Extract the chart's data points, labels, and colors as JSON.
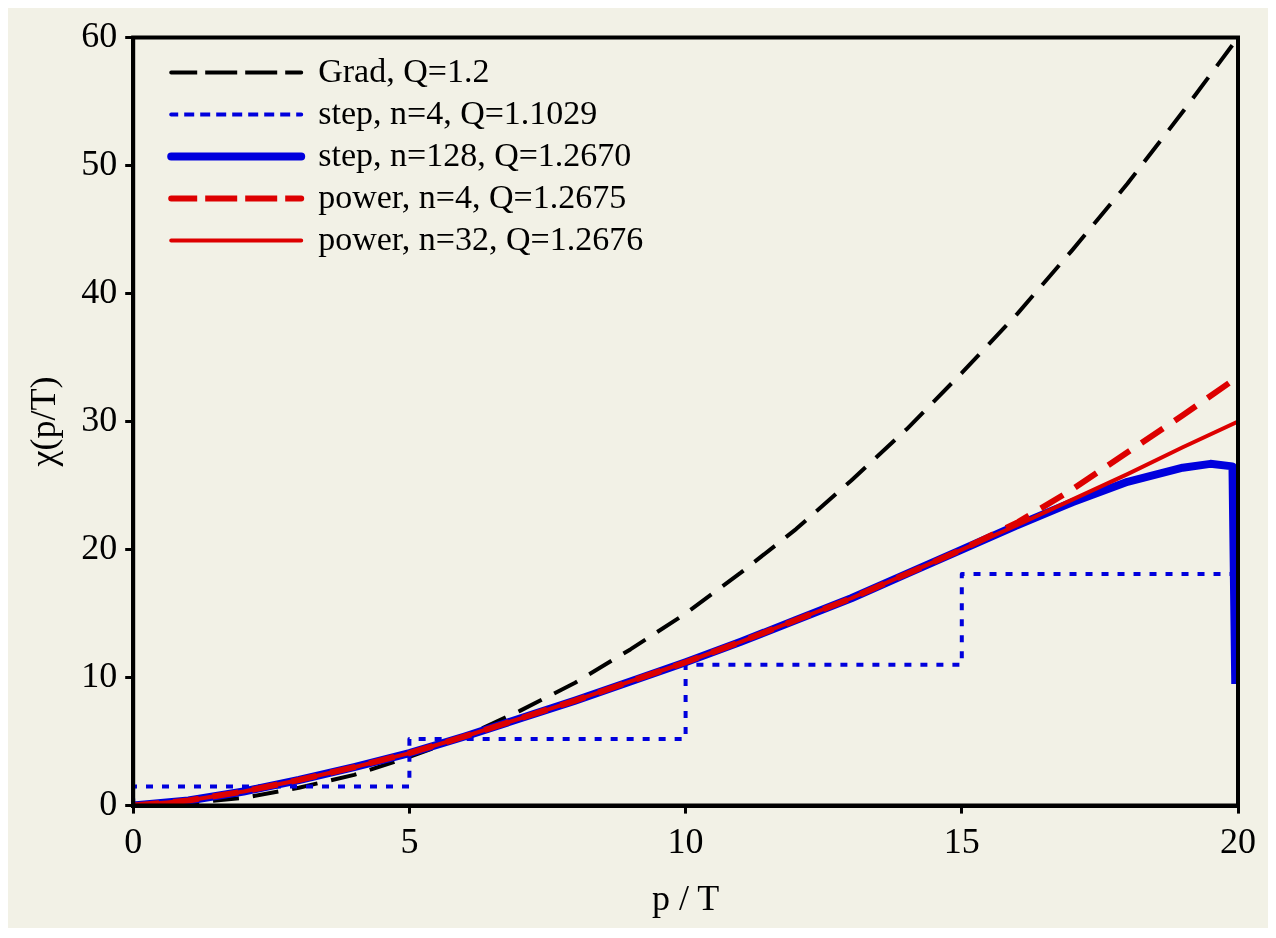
{
  "chart_data": {
    "type": "line",
    "xlabel": "p / T",
    "ylabel": "χ(p/T)",
    "xlim": [
      0,
      20
    ],
    "ylim": [
      0,
      60
    ],
    "xticks": [
      0,
      5,
      10,
      15,
      20
    ],
    "yticks": [
      0,
      10,
      20,
      30,
      40,
      50,
      60
    ],
    "grid": false,
    "legend": "top left",
    "marker": "none",
    "series": [
      {
        "name": "Grad, Q=1.2",
        "color": "#000000",
        "line_style": "dashed",
        "x": [
          0,
          1,
          2,
          3,
          4,
          5,
          6,
          7,
          8,
          9,
          10,
          11,
          12,
          13,
          14,
          15,
          16,
          17,
          18,
          19,
          20
        ],
        "values": [
          0,
          0.2,
          0.6,
          1.4,
          2.4,
          3.8,
          5.4,
          7.4,
          9.6,
          12.2,
          15,
          18.2,
          21.6,
          25.4,
          29.4,
          33.8,
          38.4,
          43.4,
          48.6,
          54.2,
          60
        ]
      },
      {
        "name": "step, n=4, Q=1.1029",
        "color": "#0000dd",
        "line_style": "dotted",
        "x": [
          0,
          0,
          5,
          5,
          10,
          10,
          15,
          15,
          20,
          20
        ],
        "values": [
          0,
          1.5,
          1.5,
          5.2,
          5.2,
          11,
          11,
          18.1,
          18.1,
          9.5
        ]
      },
      {
        "name": "step, n=128, Q=1.2670",
        "color": "#0000dd",
        "line_style": "solid",
        "x": [
          0,
          1,
          2,
          3,
          4,
          5,
          6,
          7,
          8,
          9,
          10,
          11,
          12,
          13,
          14,
          15,
          16,
          17,
          18,
          19,
          19.5,
          19.9,
          19.95
        ],
        "values": [
          0,
          0.4,
          1.1,
          2,
          3,
          4.1,
          5.4,
          6.8,
          8.2,
          9.7,
          11.2,
          12.8,
          14.5,
          16.2,
          18.1,
          20,
          21.9,
          23.7,
          25.3,
          26.4,
          26.7,
          26.5,
          9.5
        ]
      },
      {
        "name": "power, n=4, Q=1.2675",
        "color": "#dd0000",
        "line_style": "dashed",
        "x": [
          0,
          1,
          2,
          3,
          4,
          5,
          6,
          7,
          8,
          9,
          10,
          11,
          12,
          13,
          14,
          15,
          16,
          17,
          18,
          19,
          20
        ],
        "values": [
          0,
          0.4,
          1.1,
          2,
          3,
          4.1,
          5.4,
          6.8,
          8.2,
          9.7,
          11.2,
          12.8,
          14.5,
          16.2,
          18.1,
          20,
          22.1,
          24.7,
          27.6,
          30.5,
          33.5
        ]
      },
      {
        "name": "power, n=32, Q=1.2676",
        "color": "#dd0000",
        "line_style": "solid",
        "x": [
          0,
          1,
          2,
          3,
          4,
          5,
          6,
          7,
          8,
          9,
          10,
          11,
          12,
          13,
          14,
          15,
          16,
          17,
          18,
          19,
          20
        ],
        "values": [
          0,
          0.4,
          1.1,
          2,
          3,
          4.1,
          5.4,
          6.8,
          8.2,
          9.7,
          11.2,
          12.8,
          14.5,
          16.2,
          18.1,
          20,
          21.9,
          23.9,
          25.9,
          28,
          30
        ]
      }
    ]
  }
}
